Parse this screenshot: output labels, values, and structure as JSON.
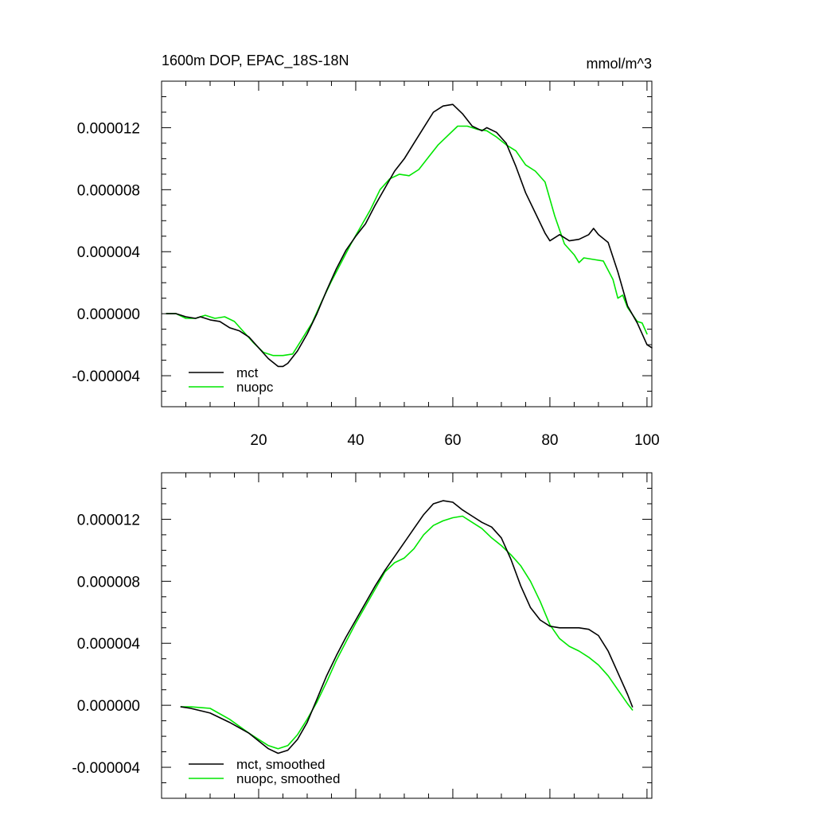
{
  "figure": {
    "title_left": "1600m DOP, EPAC_18S-18N",
    "title_right": "mmol/m^3"
  },
  "colors": {
    "mct": "#000000",
    "nuopc": "#00e600",
    "axes": "#000000",
    "background": "#ffffff"
  },
  "chart_data": [
    {
      "type": "line",
      "title": "1600m DOP, EPAC_18S-18N",
      "units": "mmol/m^3",
      "xlim": [
        0,
        101
      ],
      "ylim": [
        -6e-06,
        1.5e-05
      ],
      "xticks": [
        20,
        40,
        60,
        80,
        100
      ],
      "xtick_labels": [
        "20",
        "40",
        "60",
        "80",
        "100"
      ],
      "yticks": [
        -4e-06,
        0,
        4e-06,
        8e-06,
        1.2e-05
      ],
      "ytick_labels": [
        "-0.000004",
        "0.000000",
        "0.000004",
        "0.000008",
        "0.000012"
      ],
      "legend": [
        "mct",
        "nuopc"
      ],
      "legend_position": "bottom-left",
      "series": [
        {
          "name": "mct",
          "color": "#000000",
          "points": [
            [
              1,
              0
            ],
            [
              3,
              0
            ],
            [
              5,
              -2e-07
            ],
            [
              7,
              -3e-07
            ],
            [
              8,
              -2e-07
            ],
            [
              10,
              -4e-07
            ],
            [
              12,
              -5e-07
            ],
            [
              14,
              -9e-07
            ],
            [
              16,
              -1.1e-06
            ],
            [
              18,
              -1.5e-06
            ],
            [
              20,
              -2.2e-06
            ],
            [
              22,
              -2.9e-06
            ],
            [
              24,
              -3.4e-06
            ],
            [
              25,
              -3.4e-06
            ],
            [
              26,
              -3.2e-06
            ],
            [
              28,
              -2.4e-06
            ],
            [
              30,
              -1.3e-06
            ],
            [
              32,
              0
            ],
            [
              34,
              1.5e-06
            ],
            [
              36,
              2.9e-06
            ],
            [
              38,
              4.1e-06
            ],
            [
              40,
              5e-06
            ],
            [
              42,
              5.8e-06
            ],
            [
              44,
              7e-06
            ],
            [
              46,
              8.1e-06
            ],
            [
              48,
              9.2e-06
            ],
            [
              50,
              1e-05
            ],
            [
              52,
              1.1e-05
            ],
            [
              54,
              1.2e-05
            ],
            [
              56,
              1.3e-05
            ],
            [
              58,
              1.34e-05
            ],
            [
              60,
              1.35e-05
            ],
            [
              62,
              1.29e-05
            ],
            [
              64,
              1.21e-05
            ],
            [
              66,
              1.18e-05
            ],
            [
              67,
              1.2e-05
            ],
            [
              69,
              1.17e-05
            ],
            [
              71,
              1.1e-05
            ],
            [
              73,
              9.5e-06
            ],
            [
              75,
              7.8e-06
            ],
            [
              77,
              6.5e-06
            ],
            [
              79,
              5.2e-06
            ],
            [
              80,
              4.7e-06
            ],
            [
              82,
              5.1e-06
            ],
            [
              84,
              4.7e-06
            ],
            [
              86,
              4.8e-06
            ],
            [
              88,
              5.1e-06
            ],
            [
              89,
              5.5e-06
            ],
            [
              90,
              5.1e-06
            ],
            [
              92,
              4.6e-06
            ],
            [
              94,
              2.7e-06
            ],
            [
              96,
              5e-07
            ],
            [
              98,
              -6e-07
            ],
            [
              100,
              -2e-06
            ],
            [
              101,
              -2.2e-06
            ]
          ]
        },
        {
          "name": "nuopc",
          "color": "#00e600",
          "points": [
            [
              1,
              0
            ],
            [
              3,
              0
            ],
            [
              5,
              -3e-07
            ],
            [
              7,
              -3e-07
            ],
            [
              9,
              -1e-07
            ],
            [
              11,
              -3e-07
            ],
            [
              13,
              -2e-07
            ],
            [
              15,
              -5e-07
            ],
            [
              17,
              -1.2e-06
            ],
            [
              19,
              -1.9e-06
            ],
            [
              21,
              -2.5e-06
            ],
            [
              23,
              -2.7e-06
            ],
            [
              25,
              -2.7e-06
            ],
            [
              27,
              -2.6e-06
            ],
            [
              29,
              -1.6e-06
            ],
            [
              31,
              -6e-07
            ],
            [
              33,
              8e-07
            ],
            [
              35,
              2.1e-06
            ],
            [
              37,
              3.3e-06
            ],
            [
              39,
              4.5e-06
            ],
            [
              41,
              5.6e-06
            ],
            [
              43,
              6.7e-06
            ],
            [
              45,
              8e-06
            ],
            [
              47,
              8.7e-06
            ],
            [
              49,
              9e-06
            ],
            [
              51,
              8.9e-06
            ],
            [
              53,
              9.3e-06
            ],
            [
              55,
              1.01e-05
            ],
            [
              57,
              1.09e-05
            ],
            [
              59,
              1.15e-05
            ],
            [
              61,
              1.21e-05
            ],
            [
              63,
              1.21e-05
            ],
            [
              65,
              1.19e-05
            ],
            [
              67,
              1.18e-05
            ],
            [
              69,
              1.14e-05
            ],
            [
              71,
              1.09e-05
            ],
            [
              73,
              1.05e-05
            ],
            [
              75,
              9.6e-06
            ],
            [
              77,
              9.2e-06
            ],
            [
              79,
              8.5e-06
            ],
            [
              81,
              6.3e-06
            ],
            [
              83,
              4.5e-06
            ],
            [
              85,
              3.8e-06
            ],
            [
              86,
              3.3e-06
            ],
            [
              87,
              3.6e-06
            ],
            [
              89,
              3.5e-06
            ],
            [
              91,
              3.4e-06
            ],
            [
              93,
              2.2e-06
            ],
            [
              94,
              1e-06
            ],
            [
              95,
              1.2e-06
            ],
            [
              96,
              4e-07
            ],
            [
              98,
              -5e-07
            ],
            [
              99,
              -6e-07
            ],
            [
              100,
              -1.3e-06
            ]
          ]
        }
      ]
    },
    {
      "type": "line",
      "title": "",
      "xlim": [
        0,
        101
      ],
      "ylim": [
        -6e-06,
        1.5e-05
      ],
      "xticks": [
        20,
        40,
        60,
        80,
        100
      ],
      "xtick_labels": [],
      "yticks": [
        -4e-06,
        0,
        4e-06,
        8e-06,
        1.2e-05
      ],
      "ytick_labels": [
        "-0.000004",
        "0.000000",
        "0.000004",
        "0.000008",
        "0.000012"
      ],
      "legend": [
        "mct, smoothed",
        "nuopc, smoothed"
      ],
      "legend_position": "bottom-left",
      "series": [
        {
          "name": "mct, smoothed",
          "color": "#000000",
          "points": [
            [
              4,
              -1e-07
            ],
            [
              6,
              -2e-07
            ],
            [
              10,
              -5e-07
            ],
            [
              14,
              -1.1e-06
            ],
            [
              18,
              -1.8e-06
            ],
            [
              22,
              -2.8e-06
            ],
            [
              24,
              -3.1e-06
            ],
            [
              26,
              -2.9e-06
            ],
            [
              28,
              -2.2e-06
            ],
            [
              30,
              -1.1e-06
            ],
            [
              32,
              4e-07
            ],
            [
              34,
              1.9e-06
            ],
            [
              36,
              3.2e-06
            ],
            [
              38,
              4.4e-06
            ],
            [
              40,
              5.5e-06
            ],
            [
              42,
              6.6e-06
            ],
            [
              44,
              7.7e-06
            ],
            [
              46,
              8.7e-06
            ],
            [
              48,
              9.6e-06
            ],
            [
              50,
              1.05e-05
            ],
            [
              52,
              1.14e-05
            ],
            [
              54,
              1.23e-05
            ],
            [
              56,
              1.3e-05
            ],
            [
              58,
              1.32e-05
            ],
            [
              60,
              1.31e-05
            ],
            [
              62,
              1.26e-05
            ],
            [
              64,
              1.22e-05
            ],
            [
              66,
              1.18e-05
            ],
            [
              68,
              1.15e-05
            ],
            [
              70,
              1.08e-05
            ],
            [
              72,
              9.4e-06
            ],
            [
              74,
              7.7e-06
            ],
            [
              76,
              6.3e-06
            ],
            [
              78,
              5.5e-06
            ],
            [
              80,
              5.1e-06
            ],
            [
              82,
              5e-06
            ],
            [
              84,
              5e-06
            ],
            [
              86,
              5e-06
            ],
            [
              88,
              4.9e-06
            ],
            [
              90,
              4.5e-06
            ],
            [
              92,
              3.5e-06
            ],
            [
              94,
              2.1e-06
            ],
            [
              96,
              7e-07
            ],
            [
              97,
              -1e-07
            ]
          ]
        },
        {
          "name": "nuopc, smoothed",
          "color": "#00e600",
          "points": [
            [
              4,
              -1e-07
            ],
            [
              6,
              -1e-07
            ],
            [
              10,
              -2e-07
            ],
            [
              14,
              -9e-07
            ],
            [
              18,
              -1.8e-06
            ],
            [
              22,
              -2.6e-06
            ],
            [
              24,
              -2.8e-06
            ],
            [
              26,
              -2.6e-06
            ],
            [
              28,
              -1.9e-06
            ],
            [
              30,
              -9e-07
            ],
            [
              32,
              2e-07
            ],
            [
              34,
              1.5e-06
            ],
            [
              36,
              2.9e-06
            ],
            [
              38,
              4.1e-06
            ],
            [
              40,
              5.3e-06
            ],
            [
              42,
              6.4e-06
            ],
            [
              44,
              7.5e-06
            ],
            [
              46,
              8.6e-06
            ],
            [
              48,
              9.2e-06
            ],
            [
              50,
              9.5e-06
            ],
            [
              52,
              1.01e-05
            ],
            [
              54,
              1.1e-05
            ],
            [
              56,
              1.16e-05
            ],
            [
              58,
              1.19e-05
            ],
            [
              60,
              1.21e-05
            ],
            [
              62,
              1.22e-05
            ],
            [
              64,
              1.18e-05
            ],
            [
              66,
              1.14e-05
            ],
            [
              68,
              1.08e-05
            ],
            [
              70,
              1.03e-05
            ],
            [
              72,
              9.7e-06
            ],
            [
              74,
              9e-06
            ],
            [
              76,
              8e-06
            ],
            [
              78,
              6.7e-06
            ],
            [
              80,
              5.2e-06
            ],
            [
              82,
              4.3e-06
            ],
            [
              84,
              3.8e-06
            ],
            [
              86,
              3.5e-06
            ],
            [
              88,
              3.1e-06
            ],
            [
              90,
              2.6e-06
            ],
            [
              92,
              1.9e-06
            ],
            [
              94,
              1e-06
            ],
            [
              96,
              1e-07
            ],
            [
              97,
              -3e-07
            ]
          ]
        }
      ]
    }
  ]
}
